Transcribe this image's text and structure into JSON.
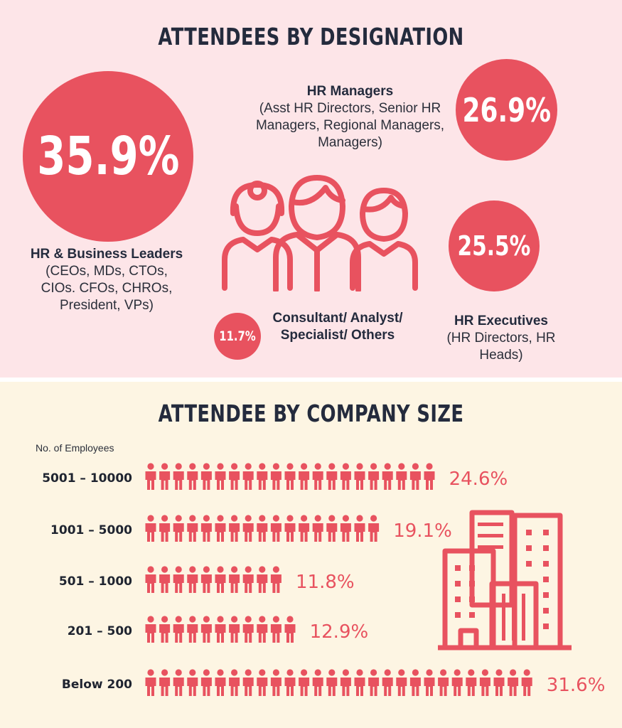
{
  "designation": {
    "title": "ATTENDEES BY DESIGNATION",
    "categories": [
      {
        "key": "leaders",
        "value_label": "35.9%",
        "value": 35.9,
        "title": "HR & Business Leaders",
        "subtitle": "(CEOs, MDs, CTOs, CIOs. CFOs, CHROs, President, VPs)"
      },
      {
        "key": "managers",
        "value_label": "26.9%",
        "value": 26.9,
        "title": "HR Managers",
        "subtitle": "(Asst HR Directors, Senior HR Managers, Regional Managers, Managers)"
      },
      {
        "key": "executives",
        "value_label": "25.5%",
        "value": 25.5,
        "title": "HR Executives",
        "subtitle": "(HR Directors, HR Heads)"
      },
      {
        "key": "consultants",
        "value_label": "11.7%",
        "value": 11.7,
        "title": "Consultant/ Analyst/ Specialist/ Others",
        "subtitle": ""
      }
    ]
  },
  "company_size": {
    "title": "ATTENDEE BY COMPANY SIZE",
    "axis_caption": "No. of Employees"
  },
  "colors": {
    "accent": "#e8525f",
    "top_background": "#fde5e8",
    "bottom_background": "#fdf5e3",
    "heading": "#242b3d"
  },
  "icons": [
    "people-group-icon",
    "person-icon",
    "buildings-icon"
  ],
  "chart_data": [
    {
      "type": "pie",
      "title": "ATTENDEES BY DESIGNATION",
      "categories": [
        "HR & Business Leaders",
        "HR Managers",
        "HR Executives",
        "Consultant/ Analyst/ Specialist/ Others"
      ],
      "values": [
        35.9,
        26.9,
        25.5,
        11.7
      ],
      "unit": "%"
    },
    {
      "type": "bar",
      "title": "ATTENDEE BY COMPANY SIZE",
      "ylabel": "No. of Employees",
      "categories": [
        "5001 – 10000",
        "1001 – 5000",
        "501 – 1000",
        "201 – 500",
        "Below 200"
      ],
      "values": [
        24.6,
        19.1,
        11.8,
        12.9,
        31.6
      ],
      "value_labels": [
        "24.6%",
        "19.1%",
        "11.8%",
        "12.9%",
        "31.6%"
      ],
      "icon_counts": [
        21,
        17,
        10,
        11,
        28
      ],
      "unit": "%",
      "orientation": "horizontal",
      "grid": false
    }
  ]
}
